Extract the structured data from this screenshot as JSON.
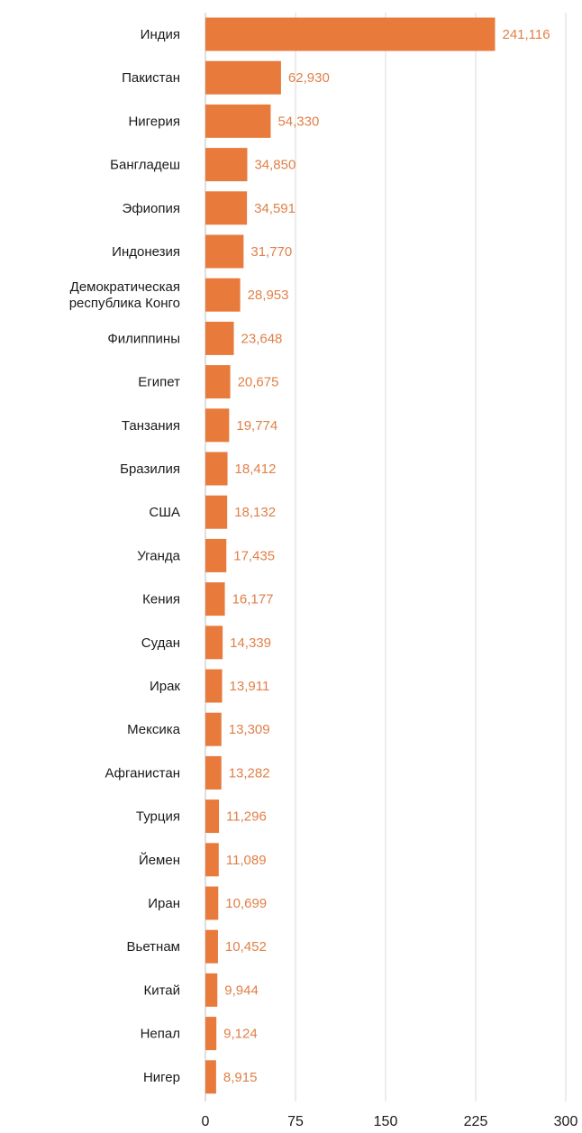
{
  "chart_data": {
    "type": "bar",
    "orientation": "horizontal",
    "categories": [
      "Индия",
      "Пакистан",
      "Нигерия",
      "Бангладеш",
      "Эфиопия",
      "Индонезия",
      [
        "Демократическая",
        "республика Конго"
      ],
      "Филиппины",
      "Египет",
      "Танзания",
      "Бразилия",
      "США",
      "Уганда",
      "Кения",
      "Судан",
      "Ирак",
      "Мексика",
      "Афганистан",
      "Турция",
      "Йемен",
      "Иран",
      "Вьетнам",
      "Китай",
      "Непал",
      "Нигер"
    ],
    "values": [
      241.116,
      62.93,
      54.33,
      34.85,
      34.591,
      31.77,
      28.953,
      23.648,
      20.675,
      19.774,
      18.412,
      18.132,
      17.435,
      16.177,
      14.339,
      13.911,
      13.309,
      13.282,
      11.296,
      11.089,
      10.699,
      10.452,
      9.944,
      9.124,
      8.915
    ],
    "value_labels": [
      "241,116",
      "62,930",
      "54,330",
      "34,850",
      "34,591",
      "31,770",
      "28,953",
      "23,648",
      "20,675",
      "19,774",
      "18,412",
      "18,132",
      "17,435",
      "16,177",
      "14,339",
      "13,911",
      "13,309",
      "13,282",
      "11,296",
      "11,089",
      "10,699",
      "10,452",
      "9,944",
      "9,124",
      "8,915"
    ],
    "xticks": [
      0,
      75,
      150,
      225,
      300
    ],
    "xlim": [
      0,
      300
    ],
    "grid": true,
    "bar_color": "#e87a3c",
    "label_color": "#e08048",
    "grid_color": "#d9d9d9"
  }
}
